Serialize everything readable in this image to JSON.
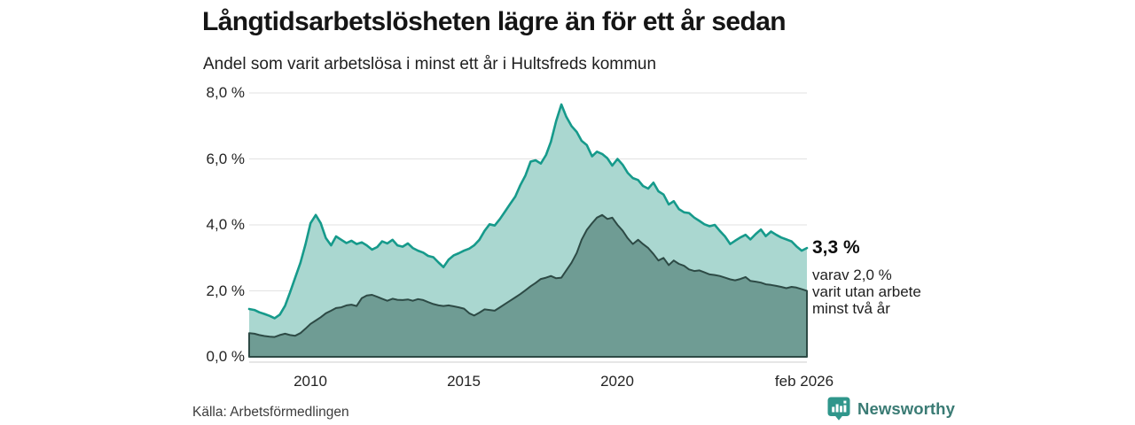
{
  "chart_data": {
    "type": "area",
    "title": "Långtidsarbetslösheten lägre än för ett år sedan",
    "subtitle": "Andel som varit arbetslösa i minst ett år i Hultsfreds kommun",
    "unit": "%",
    "grid": "horizontal",
    "legend": "none",
    "ylim": [
      0,
      8
    ],
    "ytick_values": [
      0,
      2,
      4,
      6,
      8
    ],
    "ytick_labels": [
      "0,0 %",
      "2,0 %",
      "4,0 %",
      "6,0 %",
      "8,0 %"
    ],
    "xtick_values": [
      2010,
      2015,
      2020,
      2026.08
    ],
    "xtick_labels": [
      "2010",
      "2015",
      "2020",
      "feb 2026"
    ],
    "x": [
      2008,
      2008.17,
      2008.33,
      2008.5,
      2008.67,
      2008.83,
      2009,
      2009.17,
      2009.33,
      2009.5,
      2009.67,
      2009.83,
      2010,
      2010.17,
      2010.33,
      2010.5,
      2010.67,
      2010.83,
      2011,
      2011.17,
      2011.33,
      2011.5,
      2011.67,
      2011.83,
      2012,
      2012.17,
      2012.33,
      2012.5,
      2012.67,
      2012.83,
      2013,
      2013.17,
      2013.33,
      2013.5,
      2013.67,
      2013.83,
      2014,
      2014.17,
      2014.33,
      2014.5,
      2014.67,
      2014.83,
      2015,
      2015.17,
      2015.33,
      2015.5,
      2015.67,
      2015.83,
      2016,
      2016.17,
      2016.33,
      2016.5,
      2016.67,
      2016.83,
      2017,
      2017.17,
      2017.33,
      2017.5,
      2017.67,
      2017.83,
      2018,
      2018.17,
      2018.33,
      2018.5,
      2018.67,
      2018.83,
      2019,
      2019.17,
      2019.33,
      2019.5,
      2019.67,
      2019.83,
      2020,
      2020.17,
      2020.33,
      2020.5,
      2020.67,
      2020.83,
      2021,
      2021.17,
      2021.33,
      2021.5,
      2021.67,
      2021.83,
      2022,
      2022.17,
      2022.33,
      2022.5,
      2022.67,
      2022.83,
      2023,
      2023.17,
      2023.33,
      2023.5,
      2023.67,
      2023.83,
      2024,
      2024.17,
      2024.33,
      2024.5,
      2024.67,
      2024.83,
      2025,
      2025.17,
      2025.33,
      2025.5,
      2025.67,
      2025.83,
      2026,
      2026.17
    ],
    "series": [
      {
        "id": "arbetslosa-minst-ett-ar",
        "latest_value_label": "3,3 %",
        "line_color": "#169a8b",
        "fill_color": "#aad7d0",
        "values": [
          1.45,
          1.42,
          1.35,
          1.3,
          1.24,
          1.17,
          1.28,
          1.55,
          1.95,
          2.4,
          2.85,
          3.4,
          4.05,
          4.3,
          4.05,
          3.6,
          3.38,
          3.65,
          3.55,
          3.45,
          3.52,
          3.42,
          3.47,
          3.38,
          3.25,
          3.33,
          3.5,
          3.44,
          3.55,
          3.38,
          3.34,
          3.44,
          3.3,
          3.22,
          3.16,
          3.06,
          3.02,
          2.86,
          2.72,
          2.95,
          3.08,
          3.14,
          3.22,
          3.28,
          3.38,
          3.55,
          3.82,
          4.02,
          3.98,
          4.18,
          4.4,
          4.63,
          4.86,
          5.2,
          5.5,
          5.92,
          5.96,
          5.86,
          6.12,
          6.52,
          7.15,
          7.65,
          7.28,
          7.0,
          6.82,
          6.55,
          6.42,
          6.08,
          6.22,
          6.15,
          6.02,
          5.8,
          6.0,
          5.82,
          5.58,
          5.42,
          5.36,
          5.18,
          5.1,
          5.28,
          5.02,
          4.92,
          4.62,
          4.72,
          4.48,
          4.38,
          4.36,
          4.22,
          4.12,
          4.02,
          3.96,
          4.0,
          3.82,
          3.65,
          3.42,
          3.52,
          3.62,
          3.7,
          3.56,
          3.72,
          3.86,
          3.66,
          3.8,
          3.7,
          3.62,
          3.56,
          3.5,
          3.35,
          3.22,
          3.3
        ]
      },
      {
        "id": "arbetslosa-minst-tva-ar",
        "latest_value_label": "2,0 %",
        "line_color": "#2d4a45",
        "fill_color": "#6f9c94",
        "values": [
          0.72,
          0.7,
          0.66,
          0.63,
          0.61,
          0.6,
          0.66,
          0.7,
          0.66,
          0.64,
          0.72,
          0.85,
          1.0,
          1.1,
          1.2,
          1.32,
          1.4,
          1.48,
          1.5,
          1.56,
          1.58,
          1.54,
          1.78,
          1.86,
          1.88,
          1.82,
          1.76,
          1.7,
          1.76,
          1.73,
          1.72,
          1.74,
          1.7,
          1.75,
          1.72,
          1.66,
          1.6,
          1.56,
          1.54,
          1.56,
          1.53,
          1.5,
          1.46,
          1.32,
          1.25,
          1.34,
          1.44,
          1.42,
          1.4,
          1.5,
          1.6,
          1.7,
          1.8,
          1.9,
          2.02,
          2.14,
          2.24,
          2.36,
          2.4,
          2.45,
          2.38,
          2.4,
          2.62,
          2.85,
          3.15,
          3.55,
          3.85,
          4.05,
          4.22,
          4.3,
          4.18,
          4.22,
          4.0,
          3.82,
          3.6,
          3.42,
          3.55,
          3.42,
          3.3,
          3.12,
          2.92,
          3.0,
          2.78,
          2.92,
          2.82,
          2.76,
          2.65,
          2.6,
          2.62,
          2.56,
          2.5,
          2.48,
          2.45,
          2.4,
          2.35,
          2.32,
          2.36,
          2.42,
          2.3,
          2.28,
          2.25,
          2.2,
          2.18,
          2.15,
          2.12,
          2.08,
          2.12,
          2.1,
          2.05,
          2.0
        ]
      }
    ],
    "annotation": {
      "headline": "3,3 %",
      "lines": [
        "varav 2,0 %",
        "varit utan arbete",
        "minst två år"
      ]
    },
    "gridline_color": "#e2e2e2",
    "axis_line_color": "#cccccc"
  },
  "footer": {
    "source": "Källa: Arbetsförmedlingen",
    "brand": "Newsworthy",
    "brand_color": "#3a7b74",
    "brand_icon_color": "#2f968b"
  }
}
